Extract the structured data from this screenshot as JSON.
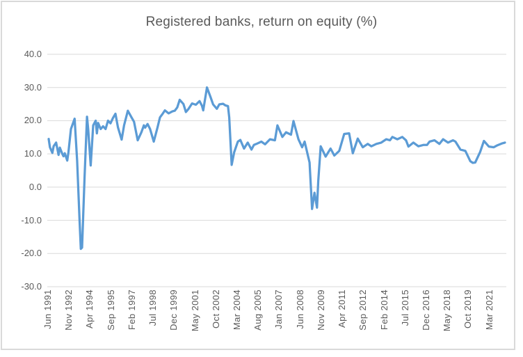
{
  "chart": {
    "title": "Registered banks, return on equity (%)",
    "colors": {
      "text": "#595959",
      "gridline": "#D9D9D9",
      "border": "#D9D9D9",
      "background": "#FFFFFF",
      "line": "#5B9BD5"
    },
    "chart_data": {
      "type": "line",
      "title": "Registered banks, return on equity (%)",
      "xlabel": "",
      "ylabel": "",
      "legend": "none",
      "grid": "horizontal",
      "ylim": [
        -30,
        40
      ],
      "y_tick_step": 10,
      "y_tick_labels": [
        "40.0",
        "30.0",
        "20.0",
        "10.0",
        "0.0",
        "-10.0",
        "-20.0",
        "-30.0"
      ],
      "x_tick_labels": [
        "Jun 1991",
        "Nov 1992",
        "Apr 1994",
        "Sep 1995",
        "Feb 1997",
        "Jul 1998",
        "Dec 1999",
        "May 2001",
        "Oct 2002",
        "Mar 2004",
        "Aug 2005",
        "Jan 2007",
        "Jun 2008",
        "Nov 2009",
        "Apr 2011",
        "Sep 2012",
        "Feb 2014",
        "Jul 2015",
        "Dec 2016",
        "May 2018",
        "Oct 2019",
        "Mar 2021"
      ],
      "x_tick_interval_months": 17,
      "x_total_months": 369,
      "x_unit": "months since Jun 1991",
      "line_color": "#5B9BD5",
      "line_width": 3.25,
      "series": [
        {
          "name": "Registered banks return on equity (%)",
          "points": [
            [
              0,
              14.5
            ],
            [
              1,
              12.0
            ],
            [
              3,
              10.3
            ],
            [
              4,
              12.3
            ],
            [
              6,
              13.4
            ],
            [
              8,
              9.7
            ],
            [
              9,
              11.9
            ],
            [
              11,
              10.0
            ],
            [
              12,
              9.3
            ],
            [
              13,
              10.2
            ],
            [
              15,
              8.0
            ],
            [
              16,
              10.5
            ],
            [
              18,
              17.5
            ],
            [
              21,
              20.6
            ],
            [
              23,
              8.0
            ],
            [
              25,
              -10.0
            ],
            [
              26,
              -18.6
            ],
            [
              27,
              -18.2
            ],
            [
              29,
              3.0
            ],
            [
              31,
              21.2
            ],
            [
              32,
              17.2
            ],
            [
              34,
              6.5
            ],
            [
              36,
              18.6
            ],
            [
              38,
              20.0
            ],
            [
              39,
              16.2
            ],
            [
              40,
              19.3
            ],
            [
              42,
              17.5
            ],
            [
              44,
              18.3
            ],
            [
              46,
              17.5
            ],
            [
              48,
              20.0
            ],
            [
              50,
              19.2
            ],
            [
              52,
              20.8
            ],
            [
              54,
              22.1
            ],
            [
              56,
              18.0
            ],
            [
              59,
              14.3
            ],
            [
              61,
              18.6
            ],
            [
              64,
              23.0
            ],
            [
              67,
              21.0
            ],
            [
              69,
              19.7
            ],
            [
              72,
              14.1
            ],
            [
              75,
              16.5
            ],
            [
              77,
              18.6
            ],
            [
              78,
              17.9
            ],
            [
              80,
              19.0
            ],
            [
              82,
              17.5
            ],
            [
              85,
              13.7
            ],
            [
              88,
              17.9
            ],
            [
              90,
              21.0
            ],
            [
              92,
              22.0
            ],
            [
              94,
              23.1
            ],
            [
              97,
              22.2
            ],
            [
              100,
              22.8
            ],
            [
              102,
              23.0
            ],
            [
              104,
              24.0
            ],
            [
              106,
              26.3
            ],
            [
              109,
              25.0
            ],
            [
              111,
              22.6
            ],
            [
              113,
              23.5
            ],
            [
              116,
              25.2
            ],
            [
              119,
              24.8
            ],
            [
              122,
              25.9
            ],
            [
              124,
              24.5
            ],
            [
              125,
              23.1
            ],
            [
              128,
              30.0
            ],
            [
              131,
              27.0
            ],
            [
              133,
              24.9
            ],
            [
              136,
              23.6
            ],
            [
              138,
              24.9
            ],
            [
              141,
              25.1
            ],
            [
              143,
              24.6
            ],
            [
              145,
              24.4
            ],
            [
              146,
              21.0
            ],
            [
              148,
              6.7
            ],
            [
              150,
              10.5
            ],
            [
              153,
              13.7
            ],
            [
              155,
              14.2
            ],
            [
              158,
              11.6
            ],
            [
              161,
              13.4
            ],
            [
              164,
              11.3
            ],
            [
              166,
              12.7
            ],
            [
              168,
              13.0
            ],
            [
              172,
              13.7
            ],
            [
              175,
              12.9
            ],
            [
              179,
              14.4
            ],
            [
              183,
              14.1
            ],
            [
              185,
              18.6
            ],
            [
              189,
              15.1
            ],
            [
              192,
              16.5
            ],
            [
              196,
              15.8
            ],
            [
              198,
              19.9
            ],
            [
              202,
              14.4
            ],
            [
              205,
              12.0
            ],
            [
              207,
              13.7
            ],
            [
              211,
              7.4
            ],
            [
              213,
              -6.6
            ],
            [
              215,
              -1.7
            ],
            [
              217,
              -6.2
            ],
            [
              218,
              1.8
            ],
            [
              220,
              12.3
            ],
            [
              224,
              9.2
            ],
            [
              228,
              11.6
            ],
            [
              231,
              9.5
            ],
            [
              235,
              10.9
            ],
            [
              239,
              16.0
            ],
            [
              243,
              16.2
            ],
            [
              246,
              10.2
            ],
            [
              250,
              14.6
            ],
            [
              254,
              12.0
            ],
            [
              258,
              13.0
            ],
            [
              261,
              12.3
            ],
            [
              265,
              13.0
            ],
            [
              269,
              13.4
            ],
            [
              273,
              14.4
            ],
            [
              276,
              14.1
            ],
            [
              278,
              15.1
            ],
            [
              282,
              14.4
            ],
            [
              286,
              15.1
            ],
            [
              289,
              14.1
            ],
            [
              291,
              12.2
            ],
            [
              295,
              13.4
            ],
            [
              299,
              12.3
            ],
            [
              303,
              12.7
            ],
            [
              306,
              12.7
            ],
            [
              308,
              13.7
            ],
            [
              312,
              14.1
            ],
            [
              316,
              13.0
            ],
            [
              319,
              14.4
            ],
            [
              323,
              13.4
            ],
            [
              327,
              14.1
            ],
            [
              329,
              13.7
            ],
            [
              333,
              11.3
            ],
            [
              337,
              10.9
            ],
            [
              341,
              7.8
            ],
            [
              343,
              7.3
            ],
            [
              345,
              7.4
            ],
            [
              349,
              10.6
            ],
            [
              352,
              13.9
            ],
            [
              356,
              12.2
            ],
            [
              360,
              12.0
            ],
            [
              363,
              12.6
            ],
            [
              367,
              13.2
            ],
            [
              369,
              13.4
            ]
          ]
        }
      ]
    }
  }
}
